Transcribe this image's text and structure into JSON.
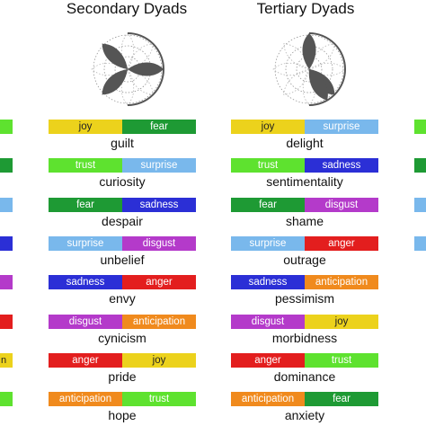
{
  "palette": {
    "joy": "#ecd21c",
    "fear": "#1e9a34",
    "trust": "#5ee22f",
    "surprise": "#79b8ec",
    "sadness": "#2b2fd6",
    "disgust": "#b43aca",
    "anger": "#e31e1e",
    "anticipation": "#f08a1d",
    "dark_text": [
      "joy"
    ]
  },
  "columns": [
    {
      "title": "Secondary Dyads",
      "dyads": [
        {
          "left": "joy",
          "right": "fear",
          "name": "guilt"
        },
        {
          "left": "trust",
          "right": "surprise",
          "name": "curiosity"
        },
        {
          "left": "fear",
          "right": "sadness",
          "name": "despair"
        },
        {
          "left": "surprise",
          "right": "disgust",
          "name": "unbelief"
        },
        {
          "left": "sadness",
          "right": "anger",
          "name": "envy"
        },
        {
          "left": "disgust",
          "right": "anticipation",
          "name": "cynicism"
        },
        {
          "left": "anger",
          "right": "joy",
          "name": "pride"
        },
        {
          "left": "anticipation",
          "right": "trust",
          "name": "hope"
        }
      ]
    },
    {
      "title": "Tertiary Dyads",
      "dyads": [
        {
          "left": "joy",
          "right": "surprise",
          "name": "delight"
        },
        {
          "left": "trust",
          "right": "sadness",
          "name": "sentimentality"
        },
        {
          "left": "fear",
          "right": "disgust",
          "name": "shame"
        },
        {
          "left": "surprise",
          "right": "anger",
          "name": "outrage"
        },
        {
          "left": "sadness",
          "right": "anticipation",
          "name": "pessimism"
        },
        {
          "left": "disgust",
          "right": "joy",
          "name": "morbidness"
        },
        {
          "left": "anger",
          "right": "trust",
          "name": "dominance"
        },
        {
          "left": "anticipation",
          "right": "fear",
          "name": "anxiety"
        }
      ]
    }
  ],
  "edge_left": [
    {
      "color": "trust",
      "text": ""
    },
    {
      "color": "fear",
      "text": ""
    },
    {
      "color": "surprise",
      "text": ""
    },
    {
      "color": "sadness",
      "text": ""
    },
    {
      "color": "disgust",
      "text": ""
    },
    {
      "color": "anger",
      "text": ""
    },
    {
      "color": "joy",
      "text": "n"
    },
    {
      "color": "trust",
      "text": ""
    }
  ],
  "edge_right": [
    {
      "color": "trust"
    },
    {
      "color": "fear"
    },
    {
      "color": "surprise"
    },
    {
      "color": "surprise"
    }
  ]
}
